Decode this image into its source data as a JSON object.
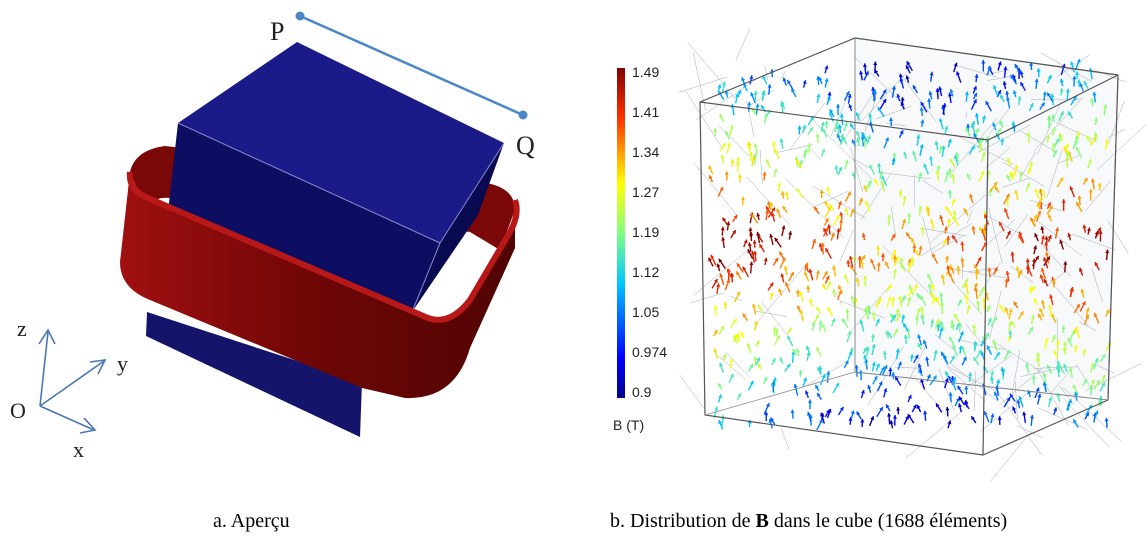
{
  "left_panel": {
    "point_p": "P",
    "point_q": "Q",
    "axes": {
      "z": "z",
      "y": "y",
      "x": "x",
      "origin": "O"
    },
    "colors": {
      "cube_top": "#1a1a88",
      "cube_front": "#0c0c5e",
      "cube_side": "#080848",
      "coil": "#8a0a0a",
      "line": "#4a86c8"
    },
    "caption": "a. Aperçu"
  },
  "right_panel": {
    "colorbar": {
      "ticks": [
        "1.49",
        "1.41",
        "1.34",
        "1.27",
        "1.19",
        "1.12",
        "1.05",
        "0.974",
        "0.9"
      ],
      "label": "B (T)",
      "min": 0.9,
      "max": 1.49
    },
    "caption_before": "b. Distribution de ",
    "caption_bold": "B",
    "caption_after": " dans le cube (1688 éléments)"
  }
}
